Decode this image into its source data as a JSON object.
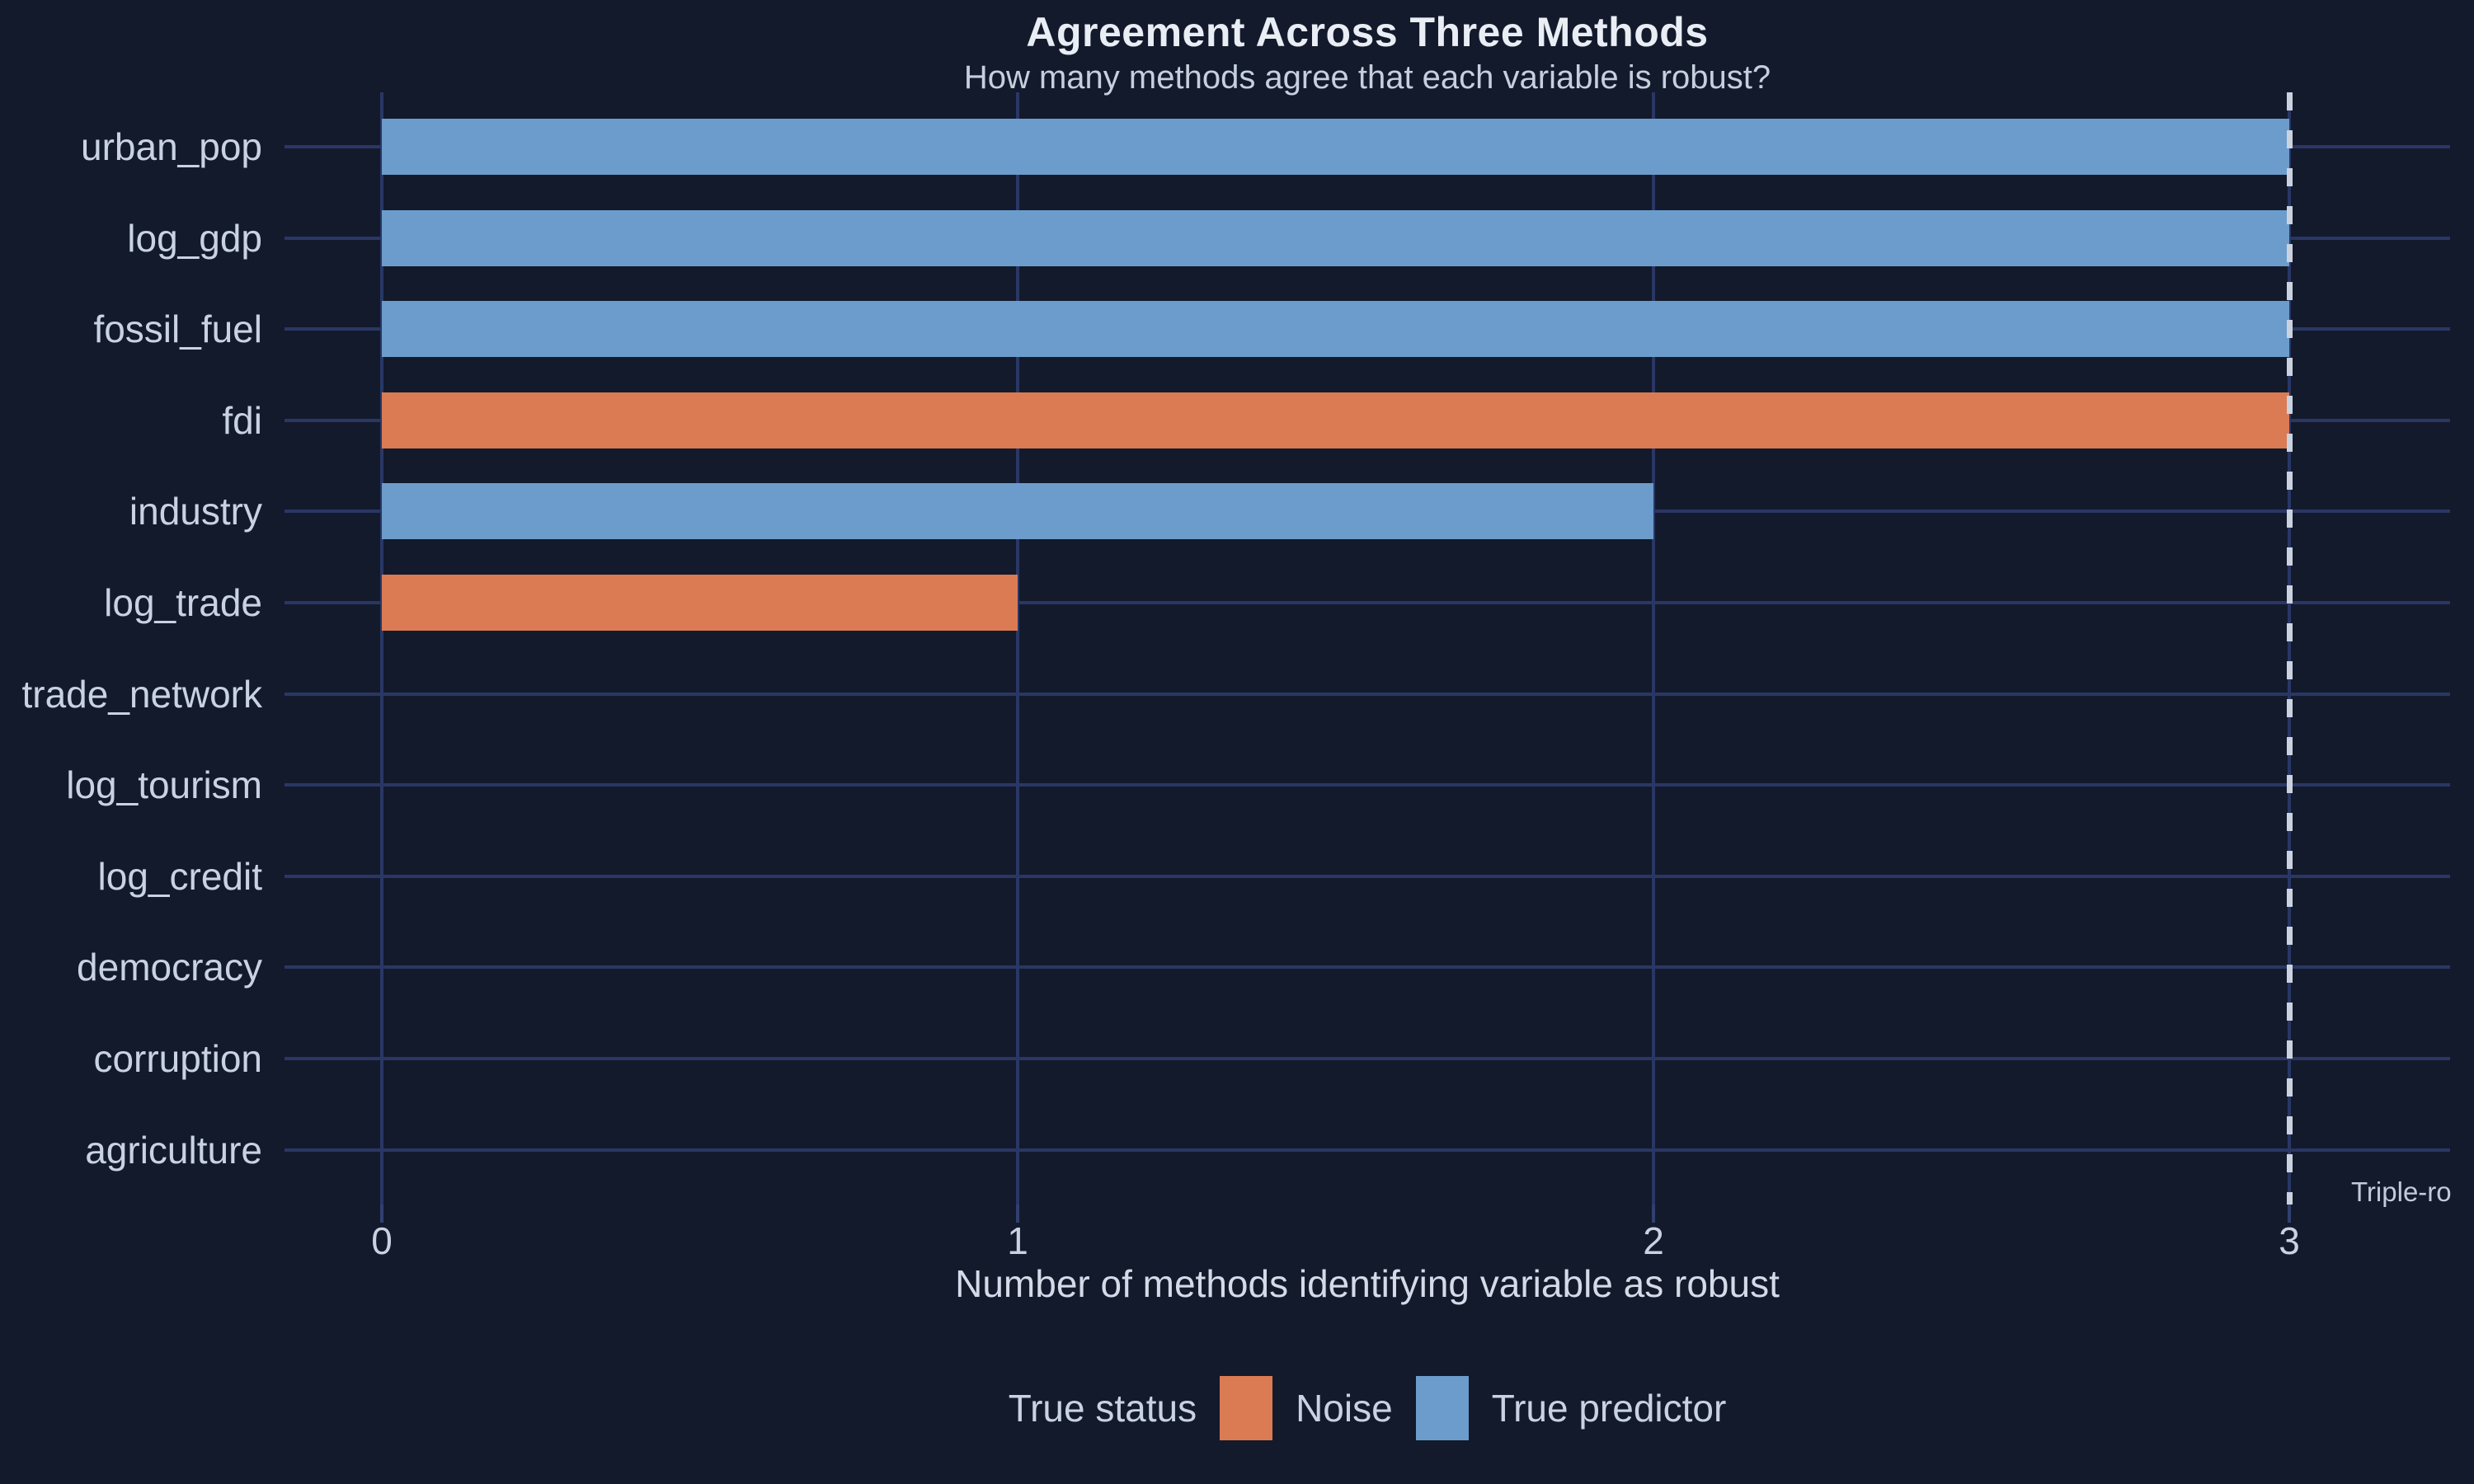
{
  "chart_data": {
    "type": "bar",
    "orientation": "horizontal",
    "title": "Agreement Across Three Methods",
    "subtitle": "How many methods agree that each variable is robust?",
    "xlabel": "Number of methods identifying variable as robust",
    "ylabel": "",
    "categories": [
      "urban_pop",
      "log_gdp",
      "fossil_fuel",
      "fdi",
      "industry",
      "log_trade",
      "trade_network",
      "log_tourism",
      "log_credit",
      "democracy",
      "corruption",
      "agriculture"
    ],
    "bars": [
      {
        "label": "urban_pop",
        "value": 3,
        "status": "True predictor"
      },
      {
        "label": "log_gdp",
        "value": 3,
        "status": "True predictor"
      },
      {
        "label": "fossil_fuel",
        "value": 3,
        "status": "True predictor"
      },
      {
        "label": "fdi",
        "value": 3,
        "status": "Noise"
      },
      {
        "label": "industry",
        "value": 2,
        "status": "True predictor"
      },
      {
        "label": "log_trade",
        "value": 1,
        "status": "Noise"
      },
      {
        "label": "trade_network",
        "value": 0,
        "status": null
      },
      {
        "label": "log_tourism",
        "value": 0,
        "status": null
      },
      {
        "label": "log_credit",
        "value": 0,
        "status": null
      },
      {
        "label": "democracy",
        "value": 0,
        "status": null
      },
      {
        "label": "corruption",
        "value": 0,
        "status": null
      },
      {
        "label": "agriculture",
        "value": 0,
        "status": null
      }
    ],
    "x_ticks": [
      0,
      1,
      2,
      3
    ],
    "xlim": [
      -0.15,
      3.25
    ],
    "grid": "major x and y gridlines, no panel border",
    "legend": {
      "title": "True status",
      "position": "bottom",
      "entries": [
        {
          "label": "Noise",
          "color": "#DB7B53"
        },
        {
          "label": "True predictor",
          "color": "#6C9CCB"
        }
      ]
    },
    "reference_line": {
      "x": 3,
      "style": "dashed",
      "label": "Triple-ro"
    }
  },
  "colors": {
    "background": "#131A2C",
    "gridline": "#2A3765",
    "tick_mark": "#31406F",
    "title_text": "#E9EDF4",
    "subtitle_text": "#C6CFDE",
    "label_text": "#C9D2E2",
    "axis_title_text": "#D4DAE7",
    "annotation_text": "#C2CBDB",
    "reference_line": "#CBD2DF",
    "bar_noise": "#DB7B53",
    "bar_true_predictor": "#6C9CCB"
  }
}
